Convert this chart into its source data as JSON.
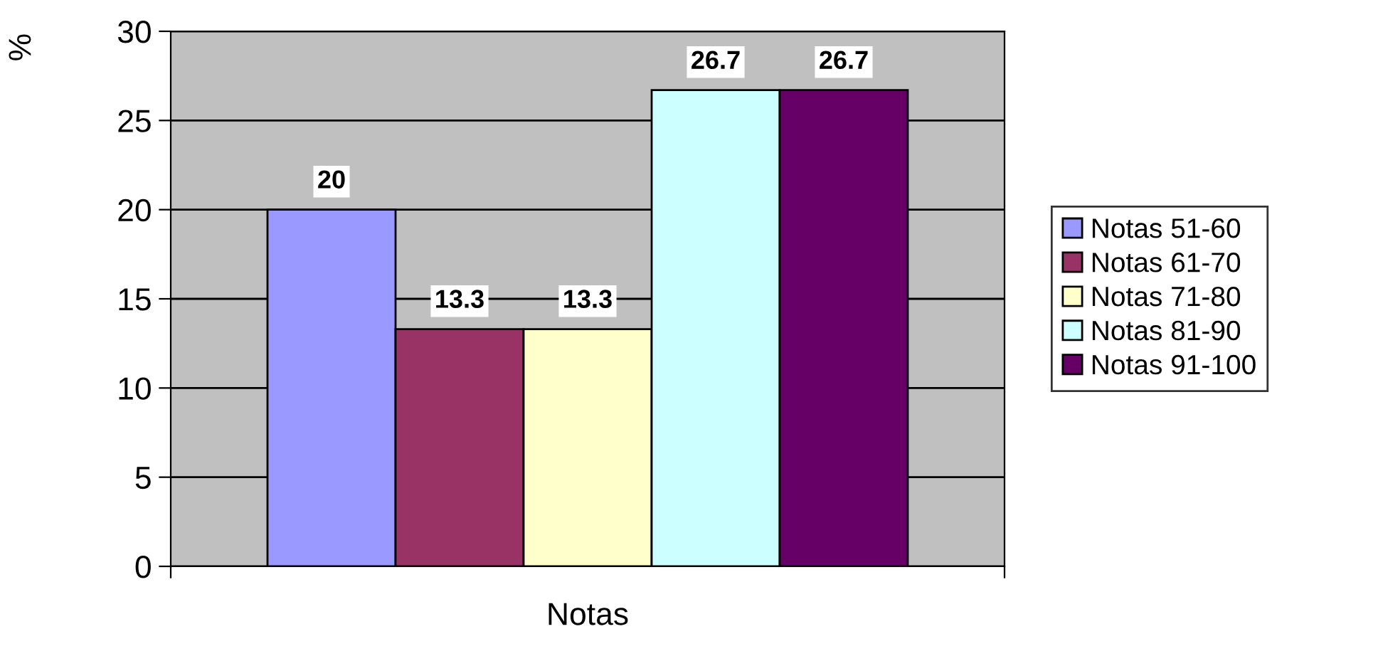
{
  "chart_data": {
    "type": "bar",
    "xlabel": "Notas",
    "ylabel": "%",
    "categories": [
      null
    ],
    "series": [
      {
        "name": "Notas 51-60",
        "color": "#9999ff",
        "values": [
          20
        ]
      },
      {
        "name": "Notas 61-70",
        "color": "#993366",
        "values": [
          13.3
        ]
      },
      {
        "name": "Notas 71-80",
        "color": "#ffffcc",
        "values": [
          13.3
        ]
      },
      {
        "name": "Notas 81-90",
        "color": "#ccffff",
        "values": [
          26.7
        ]
      },
      {
        "name": "Notas 91-100",
        "color": "#660066",
        "values": [
          26.7
        ]
      }
    ],
    "ylim": [
      0,
      30
    ],
    "yticks": [
      0,
      5,
      10,
      15,
      20,
      25,
      30
    ],
    "grid": "y",
    "legend": "right",
    "data_labels": true,
    "tick_labels": "y"
  }
}
